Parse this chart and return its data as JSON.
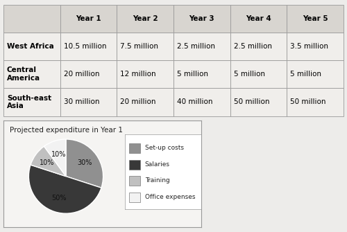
{
  "table": {
    "col_headers": [
      "",
      "Year 1",
      "Year 2",
      "Year 3",
      "Year 4",
      "Year 5"
    ],
    "rows": [
      [
        "West Africa",
        "10.5 million",
        "7.5 million",
        "2.5 million",
        "2.5 million",
        "3.5 million"
      ],
      [
        "Central\nAmerica",
        "20 million",
        "12 million",
        "5 million",
        "5 million",
        "5 million"
      ],
      [
        "South-east\nAsia",
        "30 million",
        "20 million",
        "40 million",
        "50 million",
        "50 million"
      ]
    ]
  },
  "pie": {
    "title": "Projected expenditure in Year 1",
    "labels": [
      "Set-up costs",
      "Salaries",
      "Training",
      "Office expenses"
    ],
    "values": [
      30,
      50,
      10,
      10
    ],
    "colors": [
      "#909090",
      "#383838",
      "#c0c0c0",
      "#f2f2f2"
    ],
    "startangle": 90
  },
  "bg_color": "#edecea",
  "table_header_bg": "#d8d5d0",
  "table_row_bg": "#f0eeeb",
  "border_color": "#999999"
}
